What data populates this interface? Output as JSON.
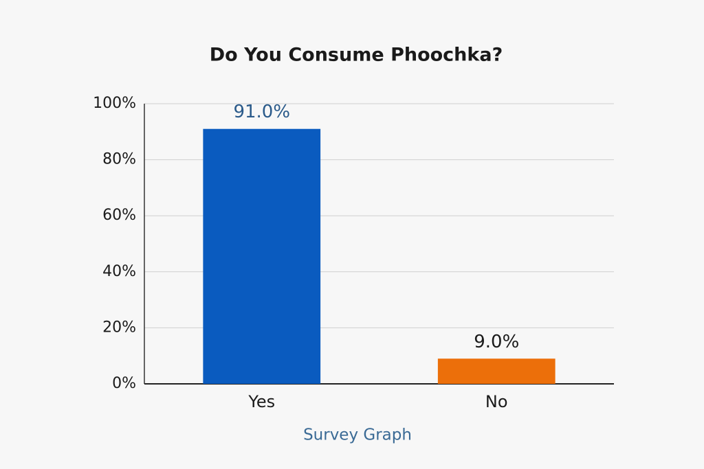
{
  "chart_data": {
    "type": "bar",
    "title": "Do You Consume Phoochka?",
    "x_label": "Survey Graph",
    "categories": [
      "Yes",
      "No"
    ],
    "values": [
      91,
      9
    ],
    "value_labels": [
      "91.0%",
      "9.0%"
    ],
    "colors": [
      "#0a5bbf",
      "#ec6f0a"
    ],
    "ylim": [
      0,
      100
    ],
    "yticks": [
      {
        "value": 0,
        "label": "0%"
      },
      {
        "value": 20,
        "label": "20%"
      },
      {
        "value": 40,
        "label": "40%"
      },
      {
        "value": 60,
        "label": "60%"
      },
      {
        "value": 80,
        "label": "80%"
      },
      {
        "value": 100,
        "label": "100%"
      }
    ],
    "grid": true
  }
}
